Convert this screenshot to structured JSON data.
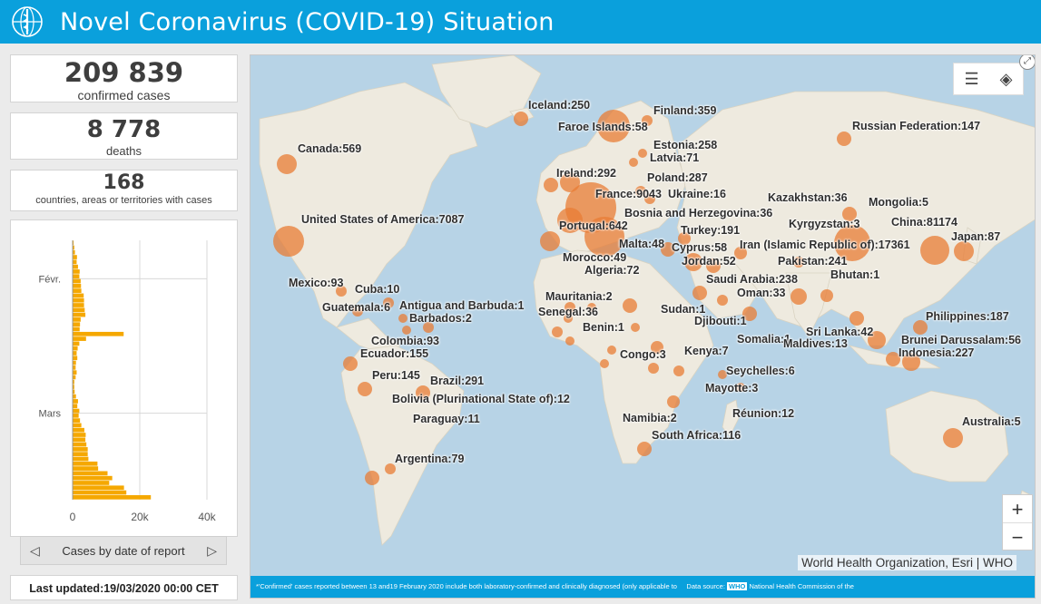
{
  "header": {
    "title": "Novel Coronavirus (COVID-19) Situation"
  },
  "stats": {
    "confirmed": {
      "value": "209 839",
      "label": "confirmed cases"
    },
    "deaths": {
      "value": "8 778",
      "label": "deaths"
    },
    "countries": {
      "value": "168",
      "label": "countries, areas or territories with cases"
    }
  },
  "chart_data": {
    "type": "bar",
    "orientation": "horizontal",
    "title": "Cases by date of report",
    "y_tick_labels": [
      "Févr.",
      "Mars"
    ],
    "x_tick_labels": [
      "0",
      "20k",
      "40k"
    ],
    "xlim": [
      0,
      40000
    ],
    "color": "#f5a800",
    "values": [
      300,
      500,
      700,
      1300,
      1200,
      1600,
      2100,
      2000,
      2400,
      2500,
      2600,
      3300,
      3400,
      3400,
      3600,
      3800,
      2400,
      2200,
      2100,
      15200,
      4000,
      2000,
      1500,
      1200,
      1400,
      1000,
      900,
      1200,
      900,
      500,
      500,
      600,
      1000,
      1600,
      1400,
      2000,
      1800,
      2200,
      2600,
      3500,
      3900,
      3800,
      4100,
      4500,
      4500,
      4700,
      7400,
      7600,
      10400,
      11800,
      10900,
      15300,
      16000,
      23300
    ]
  },
  "chart_nav": {
    "label": "Cases by date of report"
  },
  "updated": "Last updated:19/03/2020 00:00 CET",
  "map": {
    "attribution": "World Health Organization, Esri | WHO",
    "footer": "*'Confirmed' cases reported between 13 and19 February 2020 include both laboratory-confirmed and clinically diagnosed (only  applicable to",
    "source_label": "Data source:",
    "source_who": "WHO",
    "source_rest": "National Health Commission of the",
    "zoom_in": "+",
    "zoom_out": "−",
    "labels": [
      "Iceland:250",
      "Finland:359",
      "Faroe Islands:58",
      "Russian Federation:147",
      "Canada:569",
      "Estonia:258",
      "Latvia:71",
      "Ireland:292",
      "Poland:287",
      "France:9043",
      "Ukraine:16",
      "Kazakhstan:36",
      "Mongolia:5",
      "United States of America:7087",
      "Bosnia and Herzegovina:36",
      "Kyrgyzstan:3",
      "China:81174",
      "Portugal:642",
      "Turkey:191",
      "Japan:87",
      "Malta:48",
      "Cyprus:58",
      "Iran (Islamic Republic of):17361",
      "Morocco:49",
      "Jordan:52",
      "Pakistan:241",
      "Algeria:72",
      "Bhutan:1",
      "Mexico:93",
      "Saudi Arabia:238",
      "Cuba:10",
      "Oman:33",
      "Mauritania:2",
      "Guatemala:6",
      "Antigua and Barbuda:1",
      "Sudan:1",
      "Senegal:36",
      "Philippines:187",
      "Barbados:2",
      "Djibouti:1",
      "Benin:1",
      "Sri Lanka:42",
      "Colombia:93",
      "Somalia:1",
      "Maldives:13",
      "Brunei Darussalam:56",
      "Ecuador:155",
      "Kenya:7",
      "Congo:3",
      "Indonesia:227",
      "Seychelles:6",
      "Peru:145",
      "Brazil:291",
      "Mayotte:3",
      "Bolivia (Plurinational State of):12",
      "Réunion:12",
      "Paraguay:11",
      "Namibia:2",
      "Australia:5",
      "South Africa:116",
      "Argentina:79"
    ]
  }
}
